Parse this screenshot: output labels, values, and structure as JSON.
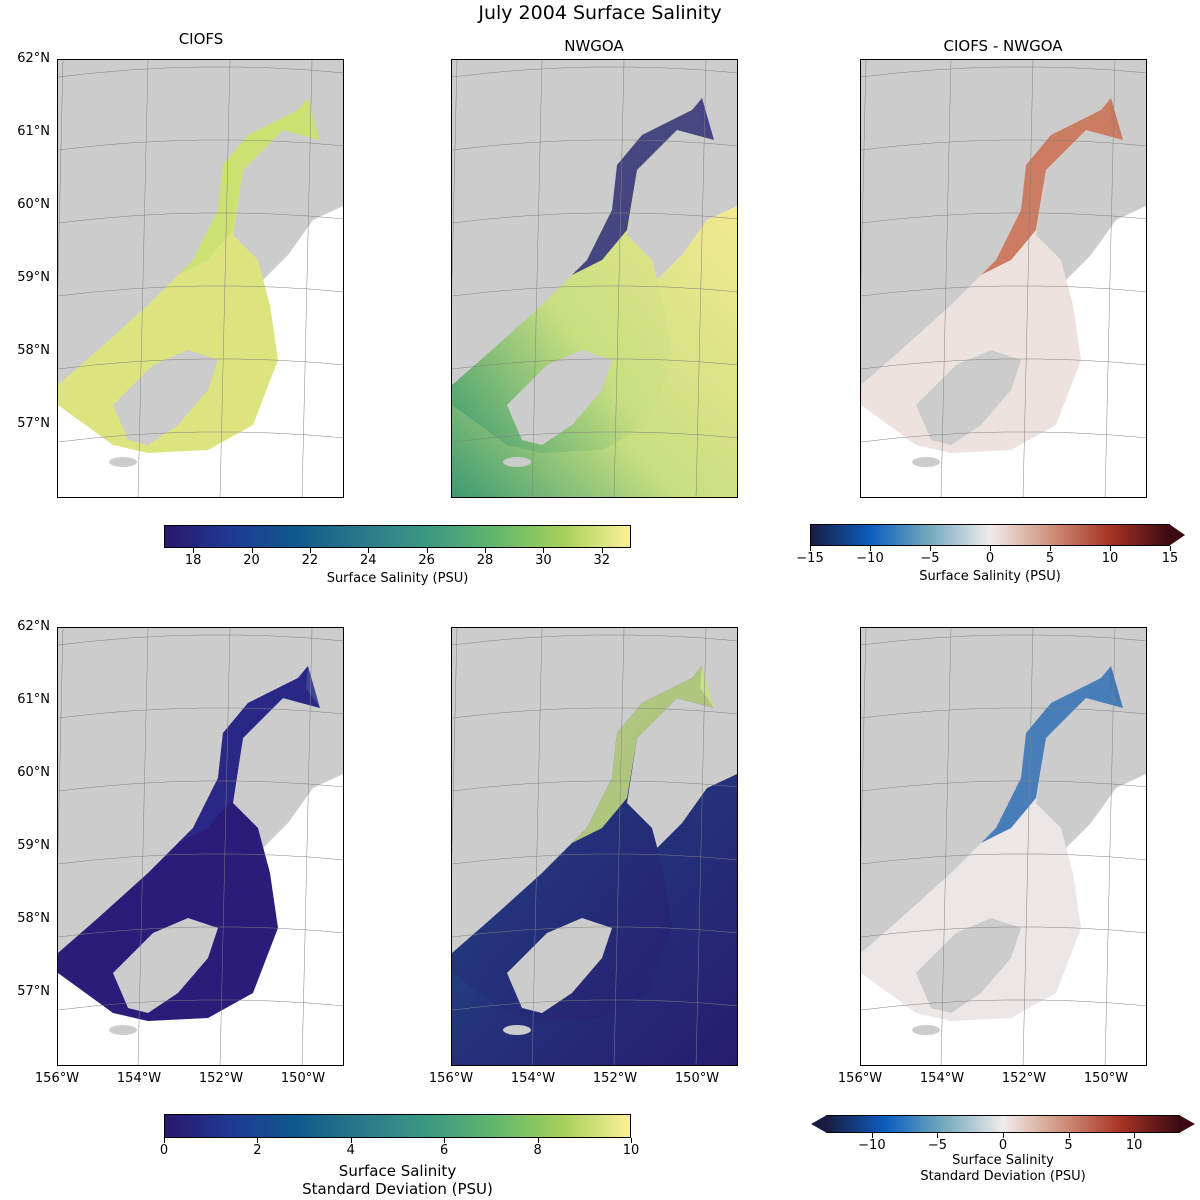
{
  "title": "July 2004 Surface Salinity",
  "columns": [
    "CIOFS",
    "NWGOA",
    "CIOFS - NWGOA"
  ],
  "lat_labels": [
    "62°N",
    "61°N",
    "60°N",
    "59°N",
    "58°N",
    "57°N"
  ],
  "lon_labels": [
    "156°W",
    "154°W",
    "152°W",
    "150°W"
  ],
  "colorbars": [
    {
      "label": "Surface Salinity (PSU)",
      "ticks": [
        "18",
        "20",
        "22",
        "24",
        "26",
        "28",
        "30",
        "32"
      ],
      "range": [
        17,
        33
      ],
      "cmap": "haline"
    },
    {
      "label": "Surface Salinity (PSU)",
      "ticks": [
        "−15",
        "−10",
        "−5",
        "0",
        "5",
        "10",
        "15"
      ],
      "range": [
        -15,
        15
      ],
      "cmap": "balance",
      "extend": "max"
    },
    {
      "label": "Surface Salinity\nStandard Deviation (PSU)",
      "label_lines": [
        "Surface Salinity",
        "Standard Deviation (PSU)"
      ],
      "ticks": [
        "0",
        "2",
        "4",
        "6",
        "8",
        "10"
      ],
      "range": [
        0,
        10
      ],
      "cmap": "haline"
    },
    {
      "label_lines": [
        "Surface Salinity",
        "Standard Deviation (PSU)"
      ],
      "ticks": [
        "−10",
        "−5",
        "0",
        "5",
        "10"
      ],
      "range": [
        -13.5,
        13.5
      ],
      "cmap": "balance",
      "extend": "both"
    }
  ],
  "colors": {
    "land": "#cccccc",
    "grid": "#808080"
  }
}
